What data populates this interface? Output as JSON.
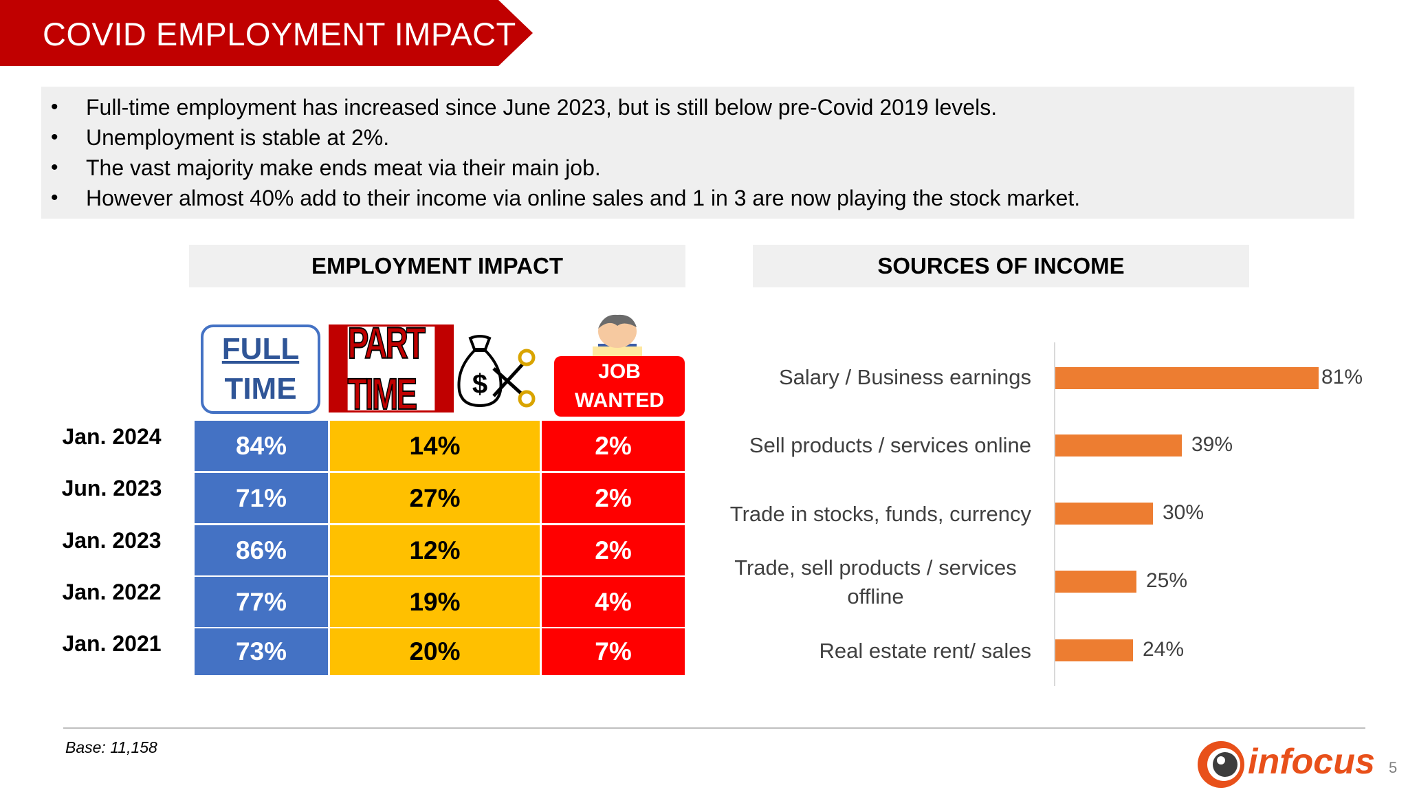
{
  "header": {
    "title": "COVID EMPLOYMENT IMPACT"
  },
  "bullets": [
    "Full-time employment has increased since June 2023, but is still below pre-Covid 2019 levels.",
    "Unemployment is stable at 2%.",
    "The vast majority make ends meat via their main job.",
    "However almost 40% add to their income via online sales and 1 in 3 are now playing the stock market."
  ],
  "employment": {
    "section_title": "EMPLOYMENT IMPACT",
    "columns": {
      "full_time": [
        "FULL",
        "TIME"
      ],
      "part_time": "PART TIME",
      "job_wanted": [
        "JOB",
        "WANTED"
      ]
    },
    "rows": [
      {
        "label": "Jan. 2024",
        "full_time": "84%",
        "part_time": "14%",
        "job_wanted": "2%"
      },
      {
        "label": "Jun. 2023",
        "full_time": "71%",
        "part_time": "27%",
        "job_wanted": "2%"
      },
      {
        "label": "Jan. 2023",
        "full_time": "86%",
        "part_time": "12%",
        "job_wanted": "2%"
      },
      {
        "label": "Jan. 2022",
        "full_time": "77%",
        "part_time": "19%",
        "job_wanted": "4%"
      },
      {
        "label": "Jan. 2021",
        "full_time": "73%",
        "part_time": "20%",
        "job_wanted": "7%"
      }
    ]
  },
  "income": {
    "section_title": "SOURCES OF INCOME",
    "categories": [
      [
        "Salary / Business earnings"
      ],
      [
        "Sell products / services online"
      ],
      [
        "Trade in stocks, funds, currency"
      ],
      [
        "Trade, sell products / services",
        "offline"
      ],
      [
        "Real estate rent/ sales"
      ]
    ],
    "values": [
      81,
      39,
      30,
      25,
      24
    ],
    "value_labels": [
      "81%",
      "39%",
      "30%",
      "25%",
      "24%"
    ],
    "bar_color": "#ed7d31"
  },
  "chart_data": {
    "type": "bar",
    "orientation": "horizontal",
    "title": "SOURCES OF INCOME",
    "categories": [
      "Salary / Business earnings",
      "Sell products / services online",
      "Trade in stocks, funds, currency",
      "Trade, sell products / services offline",
      "Real estate rent/ sales"
    ],
    "values": [
      81,
      39,
      30,
      25,
      24
    ],
    "unit": "%",
    "grid": false
  },
  "footer": {
    "base": "Base: 11,158",
    "logo_text": "infocus",
    "page_number": "5"
  },
  "colors": {
    "brand_red": "#c00000",
    "full_time_blue": "#4472c4",
    "part_time_yellow": "#ffc000",
    "job_wanted_red": "#ff0000",
    "bar_orange": "#ed7d31"
  }
}
